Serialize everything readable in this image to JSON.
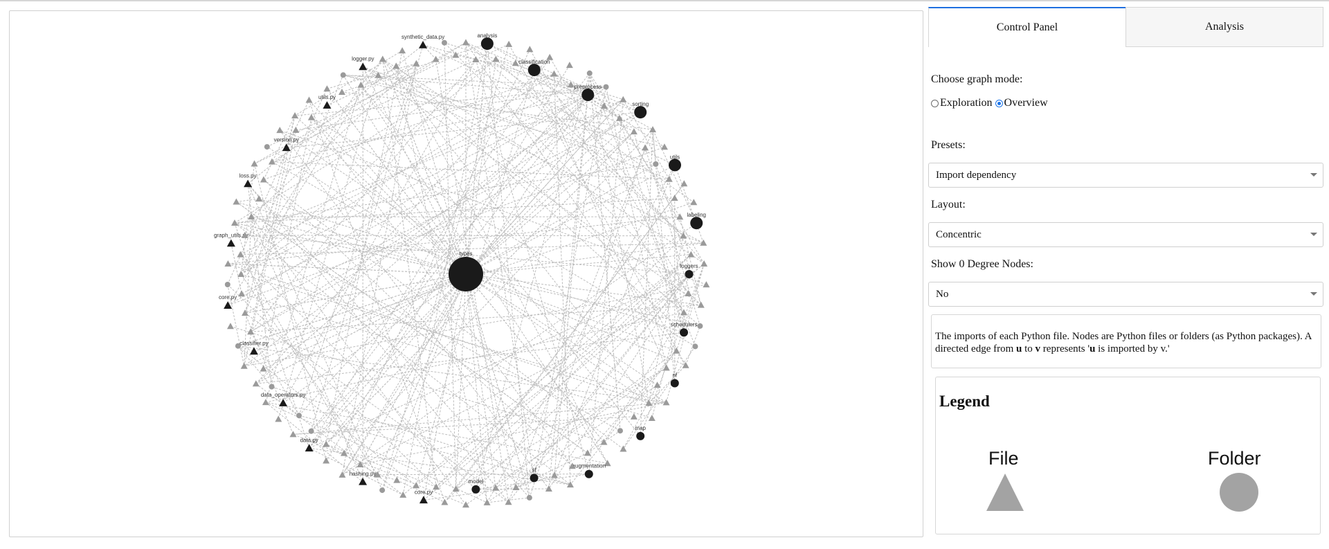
{
  "tabs": {
    "control_panel": "Control Panel",
    "analysis": "Analysis"
  },
  "graph_mode": {
    "label": "Choose graph mode:",
    "options": [
      "Exploration",
      "Overview"
    ],
    "selected": "Overview"
  },
  "presets": {
    "label": "Presets:",
    "value": "Import dependency"
  },
  "layout": {
    "label": "Layout:",
    "value": "Concentric"
  },
  "zero_degree": {
    "label": "Show 0 Degree Nodes:",
    "value": "No"
  },
  "description": {
    "part1": "The imports of each Python file. Nodes are Python files or folders (as Python packages). A directed edge from ",
    "u": "u",
    "to": " to ",
    "v": "v",
    "part2": " represents '",
    "u2": "u",
    "part3": " is imported by v.'"
  },
  "legend": {
    "title": "Legend",
    "file": "File",
    "folder": "Folder"
  },
  "colors": {
    "labeled_node": "#1a1a1a",
    "unlabeled_node": "#9a9a9a",
    "edge": "#bdbdbd",
    "legend_shape": "#a3a3a3",
    "accent": "#1f6fe0"
  },
  "graph": {
    "center": "types",
    "folders": [
      "analysis",
      "classification",
      "preprocess",
      "sorting",
      "utils",
      "labeling",
      "loggers",
      "schedulers",
      "nf",
      "map",
      "augmentation",
      "sf",
      "model"
    ],
    "files": [
      "core.py",
      "hashing.py",
      "data.py",
      "data_operators.py",
      "classifier.py",
      "core.py",
      "graph_utils.py",
      "loss.py",
      "version.py",
      "utils.py",
      "logger.py",
      "synthetic_data.py"
    ],
    "unlabeled_node_count": 115,
    "edge_count": 320
  }
}
